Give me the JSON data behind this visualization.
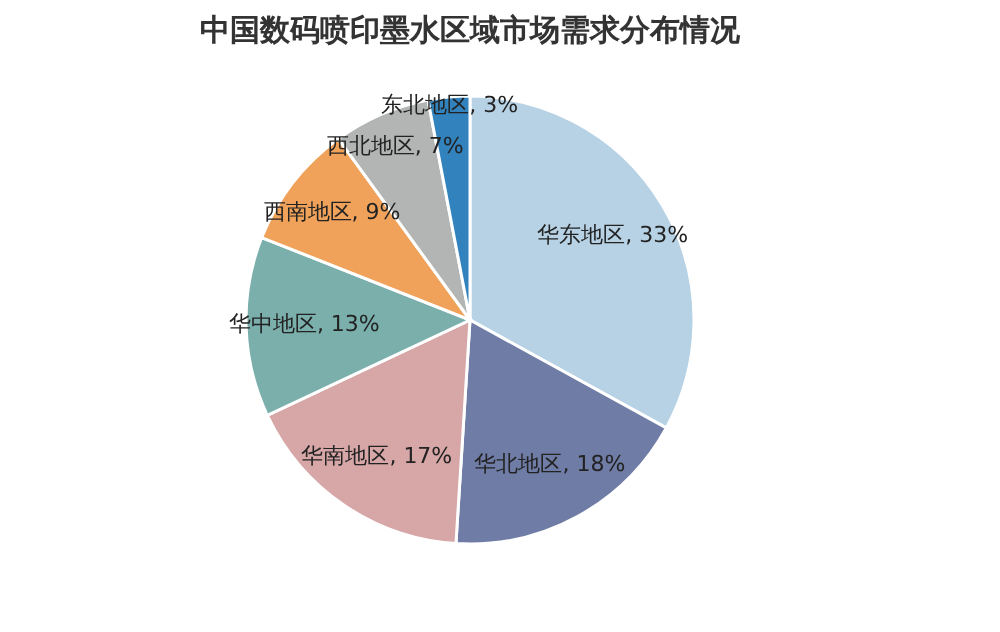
{
  "chart_data": {
    "type": "pie",
    "title": "中国数码喷印墨水区域市场需求分布情况",
    "categories": [
      "华东地区",
      "华北地区",
      "华南地区",
      "华中地区",
      "西南地区",
      "西北地区",
      "东北地区"
    ],
    "values": [
      33,
      18,
      17,
      13,
      9,
      7,
      3
    ],
    "colors": [
      "#b7d2e5",
      "#6f7ca6",
      "#d7a6a7",
      "#7aafac",
      "#f0a25a",
      "#b3b5b5",
      "#3282bd"
    ],
    "value_labels": [
      "33%",
      "18%",
      "17%",
      "13%",
      "9%",
      "7%",
      "3%"
    ],
    "legend": false
  }
}
